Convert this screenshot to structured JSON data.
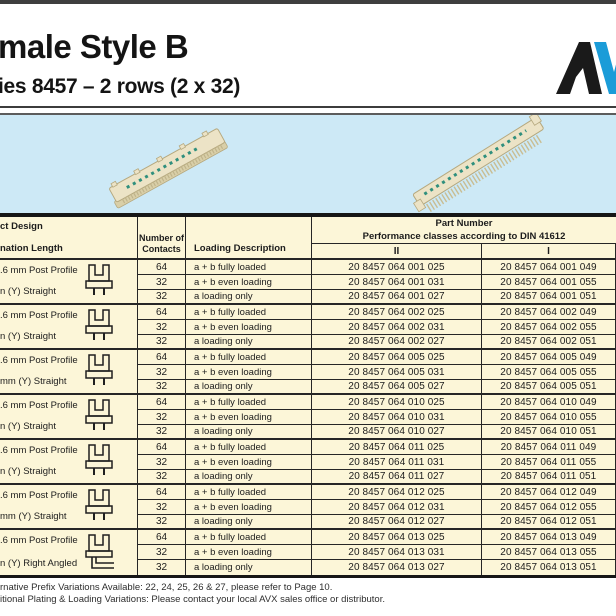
{
  "page": {
    "title": "male Style B",
    "subtitle": "ies 8457 – 2 rows (2 x 32)",
    "logo_visible": "AV",
    "footnotes": [
      "rnative Prefix Variations Available: 22, 24, 25, 26 & 27, please refer to Page 10.",
      "itional Plating & Loading Variations: Please contact your local AVX sales office or distributor."
    ]
  },
  "colors": {
    "brand_blue": "#1b9cd8",
    "band_blue": "#cde9f6",
    "table_bg": "#fcf6d8",
    "top_bar": "#3e3e3e",
    "connector_body": "#ece3c6",
    "connector_marking_green": "#2f8f7d"
  },
  "table": {
    "headers": {
      "col1_line1": "ct Design",
      "col1_line2": "nation Length",
      "col2": "Number of Contacts",
      "col3": "Loading Description",
      "part_number_title": "Part Number",
      "part_number_subtitle": "Performance classes according to DIN 41612",
      "class_ii": "II",
      "class_i": "I"
    },
    "groups": [
      {
        "label_line1": ".6 mm Post Profile",
        "label_line2": "n (Y) Straight",
        "icon": "post-profile-straight",
        "rows": [
          {
            "contacts": "64",
            "loading": "a + b fully loaded",
            "pn_ii": "20 8457 064 001 025",
            "pn_i": "20 8457 064 001 049"
          },
          {
            "contacts": "32",
            "loading": "a + b even loading",
            "pn_ii": "20 8457 064 001 031",
            "pn_i": "20 8457 064 001 055"
          },
          {
            "contacts": "32",
            "loading": "a loading only",
            "pn_ii": "20 8457 064 001 027",
            "pn_i": "20 8457 064 001 051"
          }
        ]
      },
      {
        "label_line1": ".6 mm Post Profile",
        "label_line2": "n (Y) Straight",
        "icon": "post-profile-straight",
        "rows": [
          {
            "contacts": "64",
            "loading": "a + b fully loaded",
            "pn_ii": "20 8457 064 002 025",
            "pn_i": "20 8457 064 002 049"
          },
          {
            "contacts": "32",
            "loading": "a + b even loading",
            "pn_ii": "20 8457 064 002 031",
            "pn_i": "20 8457 064 002 055"
          },
          {
            "contacts": "32",
            "loading": "a loading only",
            "pn_ii": "20 8457 064 002 027",
            "pn_i": "20 8457 064 002 051"
          }
        ]
      },
      {
        "label_line1": ".6 mm Post Profile",
        "label_line2": "mm (Y) Straight",
        "icon": "post-profile-straight",
        "rows": [
          {
            "contacts": "64",
            "loading": "a + b fully loaded",
            "pn_ii": "20 8457 064 005 025",
            "pn_i": "20 8457 064 005 049"
          },
          {
            "contacts": "32",
            "loading": "a + b even loading",
            "pn_ii": "20 8457 064 005 031",
            "pn_i": "20 8457 064 005 055"
          },
          {
            "contacts": "32",
            "loading": "a loading only",
            "pn_ii": "20 8457 064 005 027",
            "pn_i": "20 8457 064 005 051"
          }
        ]
      },
      {
        "label_line1": ".6 mm Post Profile",
        "label_line2": "n (Y) Straight",
        "icon": "post-profile-straight",
        "rows": [
          {
            "contacts": "64",
            "loading": "a + b fully loaded",
            "pn_ii": "20 8457 064 010 025",
            "pn_i": "20 8457 064 010 049"
          },
          {
            "contacts": "32",
            "loading": "a + b even loading",
            "pn_ii": "20 8457 064 010 031",
            "pn_i": "20 8457 064 010 055"
          },
          {
            "contacts": "32",
            "loading": "a loading only",
            "pn_ii": "20 8457 064 010 027",
            "pn_i": "20 8457 064 010 051"
          }
        ]
      },
      {
        "label_line1": ".6 mm Post Profile",
        "label_line2": "n (Y) Straight",
        "icon": "post-profile-straight",
        "rows": [
          {
            "contacts": "64",
            "loading": "a + b fully loaded",
            "pn_ii": "20 8457 064 011 025",
            "pn_i": "20 8457 064 011 049"
          },
          {
            "contacts": "32",
            "loading": "a + b even loading",
            "pn_ii": "20 8457 064 011 031",
            "pn_i": "20 8457 064 011 055"
          },
          {
            "contacts": "32",
            "loading": "a loading only",
            "pn_ii": "20 8457 064 011 027",
            "pn_i": "20 8457 064 011 051"
          }
        ]
      },
      {
        "label_line1": ".6 mm Post Profile",
        "label_line2": "mm (Y) Straight",
        "icon": "post-profile-straight",
        "rows": [
          {
            "contacts": "64",
            "loading": "a + b fully loaded",
            "pn_ii": "20 8457 064 012 025",
            "pn_i": "20 8457 064 012 049"
          },
          {
            "contacts": "32",
            "loading": "a + b even loading",
            "pn_ii": "20 8457 064 012 031",
            "pn_i": "20 8457 064 012 055"
          },
          {
            "contacts": "32",
            "loading": "a loading only",
            "pn_ii": "20 8457 064 012 027",
            "pn_i": "20 8457 064 012 051"
          }
        ]
      },
      {
        "label_line1": ".6 mm Post Profile",
        "label_line2": "n (Y) Right Angled",
        "icon": "post-profile-right-angled",
        "rows": [
          {
            "contacts": "64",
            "loading": "a + b fully loaded",
            "pn_ii": "20 8457 064 013 025",
            "pn_i": "20 8457 064 013 049"
          },
          {
            "contacts": "32",
            "loading": "a + b even loading",
            "pn_ii": "20 8457 064 013 031",
            "pn_i": "20 8457 064 013 055"
          },
          {
            "contacts": "32",
            "loading": "a loading only",
            "pn_ii": "20 8457 064 013 027",
            "pn_i": "20 8457 064 013 051"
          }
        ]
      }
    ]
  }
}
